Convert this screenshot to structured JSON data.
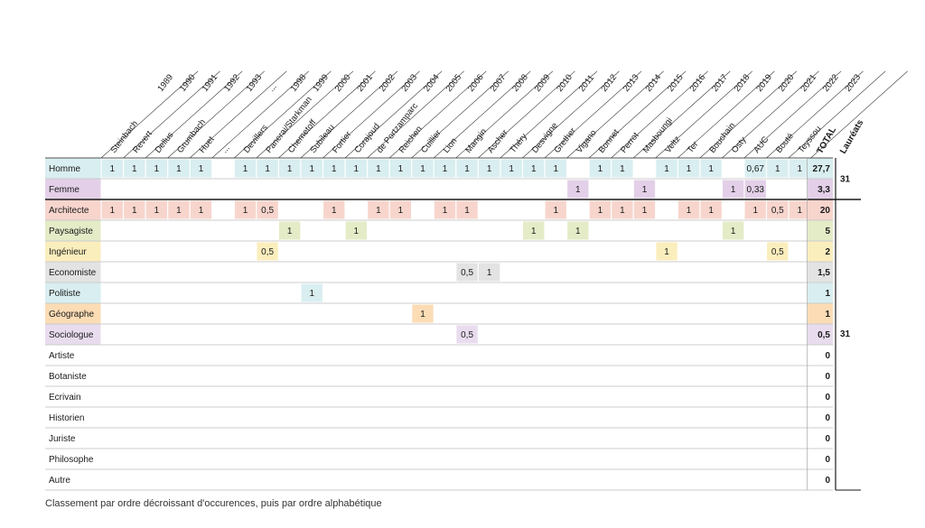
{
  "chart_data": {
    "type": "table",
    "years": [
      "1989",
      "1990",
      "1991",
      "1992",
      "1993",
      "...",
      "1998",
      "1999",
      "2000",
      "2001",
      "2002",
      "2003",
      "2004",
      "2005",
      "2006",
      "2007",
      "2008",
      "2009",
      "2010",
      "2011",
      "2012",
      "2013",
      "2014",
      "2015",
      "2016",
      "2017",
      "2018",
      "2019",
      "2020",
      "2021",
      "2022",
      "2023"
    ],
    "laureates": [
      "Steinbach",
      "Revert",
      "Dellus",
      "Grumbach",
      "Huet",
      "...",
      "Devillers",
      "Panerai/Starkman",
      "Chemetoff",
      "Subileau",
      "Fortier",
      "Corajoud",
      "de Portzamparc",
      "Reichen",
      "Cuillier",
      "Lion",
      "Mangin",
      "Ascher",
      "Théry",
      "Desvigne",
      "Grether",
      "Vigano",
      "Bonnet",
      "Perrot",
      "Masboungi",
      "Veltz",
      "Ter",
      "Bouchain",
      "Osty",
      "AUC",
      "Bouté",
      "Teyssou"
    ],
    "total_label": "TOTAL",
    "laureats_label": "Lauréats",
    "groups": [
      {
        "laureats_total": "31"
      },
      {
        "laureats_total": "31"
      }
    ],
    "rows": [
      {
        "label": "Homme",
        "color": "#d9eef0",
        "group": 0,
        "values": [
          "1",
          "1",
          "1",
          "1",
          "1",
          "",
          "1",
          "1",
          "1",
          "1",
          "1",
          "1",
          "1",
          "1",
          "1",
          "1",
          "1",
          "1",
          "1",
          "1",
          "1",
          "",
          "1",
          "1",
          "",
          "1",
          "1",
          "1",
          "",
          "0,67",
          "1",
          "1"
        ],
        "total": "27,7"
      },
      {
        "label": "Femme",
        "color": "#e3d0e8",
        "group": 0,
        "values": [
          "",
          "",
          "",
          "",
          "",
          "",
          "",
          "",
          "",
          "",
          "",
          "",
          "",
          "",
          "",
          "",
          "",
          "",
          "",
          "",
          "",
          "1",
          "",
          "",
          "1",
          "",
          "",
          "",
          "1",
          "0,33",
          "",
          ""
        ],
        "total": "3,3"
      },
      {
        "label": "Architecte",
        "color": "#f7d5cd",
        "group": 1,
        "values": [
          "1",
          "1",
          "1",
          "1",
          "1",
          "",
          "1",
          "0,5",
          "",
          "",
          "1",
          "",
          "1",
          "1",
          "",
          "1",
          "1",
          "",
          "",
          "",
          "1",
          "",
          "1",
          "1",
          "1",
          "",
          "1",
          "1",
          "",
          "1",
          "0,5",
          "1"
        ],
        "total": "20"
      },
      {
        "label": "Paysagiste",
        "color": "#e4ebc7",
        "group": 1,
        "values": [
          "",
          "",
          "",
          "",
          "",
          "",
          "",
          "",
          "1",
          "",
          "",
          "1",
          "",
          "",
          "",
          "",
          "",
          "",
          "",
          "1",
          "",
          "1",
          "",
          "",
          "",
          "",
          "",
          "",
          "1",
          "",
          "",
          ""
        ],
        "total": "5"
      },
      {
        "label": "Ingénieur",
        "color": "#fbeebd",
        "group": 1,
        "values": [
          "",
          "",
          "",
          "",
          "",
          "",
          "",
          "0,5",
          "",
          "",
          "",
          "",
          "",
          "",
          "",
          "",
          "",
          "",
          "",
          "",
          "",
          "",
          "",
          "",
          "",
          "1",
          "",
          "",
          "",
          "",
          "0,5",
          ""
        ],
        "total": "2"
      },
      {
        "label": "Economiste",
        "color": "#e3e3e3",
        "group": 1,
        "values": [
          "",
          "",
          "",
          "",
          "",
          "",
          "",
          "",
          "",
          "",
          "",
          "",
          "",
          "",
          "",
          "",
          "0,5",
          "1",
          "",
          "",
          "",
          "",
          "",
          "",
          "",
          "",
          "",
          "",
          "",
          "",
          "",
          ""
        ],
        "total": "1,5"
      },
      {
        "label": "Politiste",
        "color": "#d9eef0",
        "group": 1,
        "values": [
          "",
          "",
          "",
          "",
          "",
          "",
          "",
          "",
          "",
          "1",
          "",
          "",
          "",
          "",
          "",
          "",
          "",
          "",
          "",
          "",
          "",
          "",
          "",
          "",
          "",
          "",
          "",
          "",
          "",
          "",
          "",
          ""
        ],
        "total": "1"
      },
      {
        "label": "Géographe",
        "color": "#fbdcb5",
        "group": 1,
        "values": [
          "",
          "",
          "",
          "",
          "",
          "",
          "",
          "",
          "",
          "",
          "",
          "",
          "",
          "",
          "1",
          "",
          "",
          "",
          "",
          "",
          "",
          "",
          "",
          "",
          "",
          "",
          "",
          "",
          "",
          "",
          "",
          ""
        ],
        "total": "1"
      },
      {
        "label": "Sociologue",
        "color": "#e8dcee",
        "group": 1,
        "values": [
          "",
          "",
          "",
          "",
          "",
          "",
          "",
          "",
          "",
          "",
          "",
          "",
          "",
          "",
          "",
          "",
          "0,5",
          "",
          "",
          "",
          "",
          "",
          "",
          "",
          "",
          "",
          "",
          "",
          "",
          "",
          "",
          ""
        ],
        "total": "0,5"
      },
      {
        "label": "Artiste",
        "color": "",
        "group": 1,
        "values": [],
        "total": "0"
      },
      {
        "label": "Botaniste",
        "color": "",
        "group": 1,
        "values": [],
        "total": "0"
      },
      {
        "label": "Ecrivain",
        "color": "",
        "group": 1,
        "values": [],
        "total": "0"
      },
      {
        "label": "Historien",
        "color": "",
        "group": 1,
        "values": [],
        "total": "0"
      },
      {
        "label": "Juriste",
        "color": "",
        "group": 1,
        "values": [],
        "total": "0"
      },
      {
        "label": "Philosophe",
        "color": "",
        "group": 1,
        "values": [],
        "total": "0"
      },
      {
        "label": "Autre",
        "color": "",
        "group": 1,
        "values": [],
        "total": "0"
      }
    ]
  },
  "caption": "Classement par ordre décroissant d'occurences, puis par ordre alphabétique"
}
